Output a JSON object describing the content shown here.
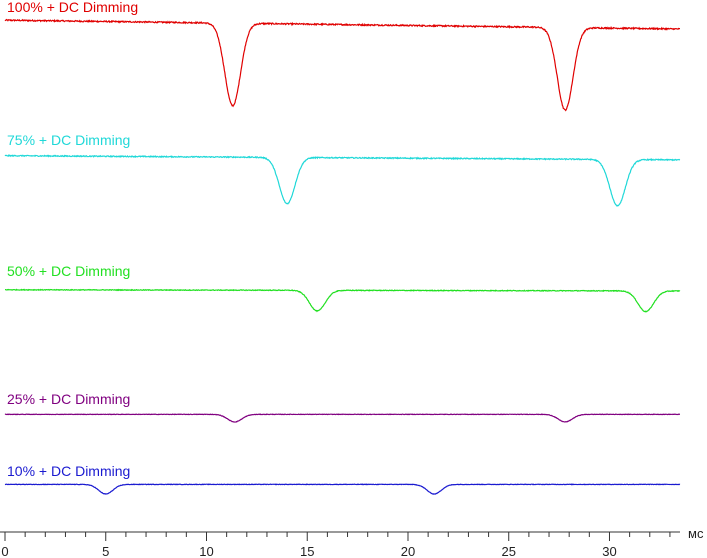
{
  "chart_data": {
    "type": "line",
    "x_unit": "мс",
    "xlim": [
      0,
      33.5
    ],
    "xticks": [
      0,
      5,
      10,
      15,
      20,
      25,
      30
    ],
    "grid": false,
    "legend": "inline labels above each trace",
    "series": [
      {
        "name": "100% + DC Dimming",
        "color": "#e00000",
        "dips_ms": [
          11.3,
          27.8
        ],
        "dip_depth": 0.75,
        "dip_width_ms": 0.55,
        "baseline_start": 0.98,
        "baseline_end": 0.9
      },
      {
        "name": "75% + DC Dimming",
        "color": "#20d8d8",
        "dips_ms": [
          14.0,
          30.4
        ],
        "dip_depth": 0.55,
        "dip_width_ms": 0.55,
        "baseline_start": 0.98,
        "baseline_end": 0.93
      },
      {
        "name": "50% + DC Dimming",
        "color": "#22e022",
        "dips_ms": [
          15.5,
          31.8
        ],
        "dip_depth": 0.35,
        "dip_width_ms": 0.55,
        "baseline_start": 0.97,
        "baseline_end": 0.95
      },
      {
        "name": "25% + DC Dimming",
        "color": "#800080",
        "dips_ms": [
          11.4,
          27.8
        ],
        "dip_depth": 0.21,
        "dip_width_ms": 0.5,
        "baseline_start": 0.99,
        "baseline_end": 0.99
      },
      {
        "name": "10% + DC Dimming",
        "color": "#1a1ad0",
        "dips_ms": [
          5.0,
          21.3
        ],
        "dip_depth": 0.24,
        "dip_width_ms": 0.5,
        "baseline_start": 0.99,
        "baseline_end": 0.99
      }
    ]
  }
}
